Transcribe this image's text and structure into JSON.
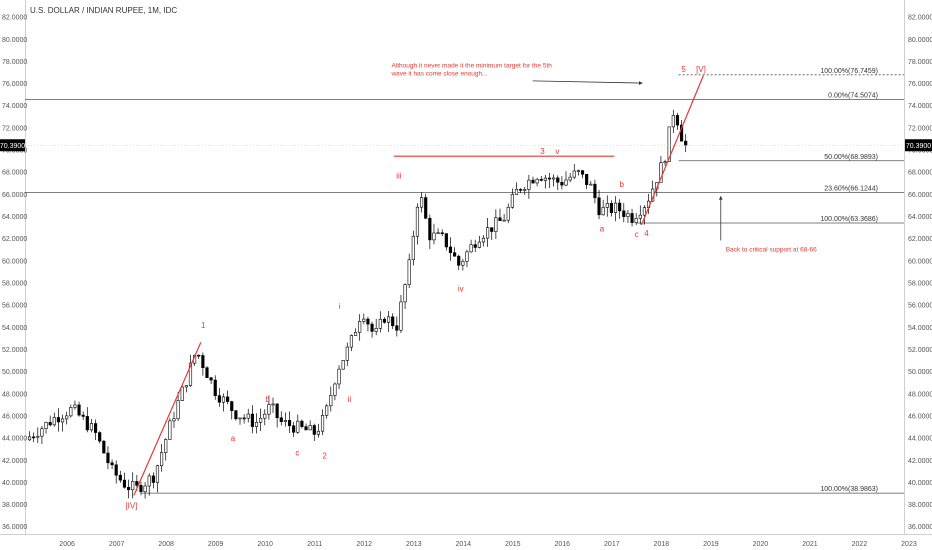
{
  "chart_data": {
    "type": "candlestick",
    "title": "U.S. DOLLAR / INDIAN RUPEE, 1M, IDC",
    "ylim": [
      35.3,
      83.5
    ],
    "xlim": [
      2005.65,
      2023.4
    ],
    "y_ticks": [
      "82.0000",
      "80.0000",
      "78.0000",
      "76.0000",
      "74.0000",
      "72.0000",
      "70.0000",
      "68.0000",
      "66.0000",
      "64.0000",
      "62.0000",
      "60.0000",
      "58.0000",
      "56.0000",
      "54.0000",
      "52.0000",
      "50.0000",
      "48.0000",
      "46.0000",
      "44.0000",
      "42.0000",
      "40.0000",
      "38.0000",
      "36.0000"
    ],
    "x_ticks": [
      "2006",
      "2007",
      "2008",
      "2009",
      "2010",
      "2011",
      "2012",
      "2013",
      "2014",
      "2015",
      "2016",
      "2017",
      "2018",
      "2019",
      "2020",
      "2021",
      "2022",
      "2023"
    ],
    "last_price": "70.3900",
    "grid": false,
    "colors": {
      "up": "#ffffff",
      "down": "#000000",
      "wick": "#000000",
      "annotation": "#e53935",
      "level": "#555555",
      "text": "#333333"
    },
    "anchors": [
      [
        2005.7,
        43.8
      ],
      [
        2006.3,
        45.8
      ],
      [
        2006.65,
        46.6
      ],
      [
        2007.1,
        44.5
      ],
      [
        2007.45,
        41.0
      ],
      [
        2007.75,
        39.6
      ],
      [
        2007.95,
        39.4
      ],
      [
        2008.3,
        40.6
      ],
      [
        2008.65,
        45.5
      ],
      [
        2008.95,
        49.2
      ],
      [
        2009.15,
        51.9
      ],
      [
        2009.55,
        48.1
      ],
      [
        2009.95,
        46.2
      ],
      [
        2010.35,
        45.3
      ],
      [
        2010.65,
        46.8
      ],
      [
        2010.85,
        45.4
      ],
      [
        2011.2,
        44.9
      ],
      [
        2011.55,
        44.4
      ],
      [
        2011.75,
        45.9
      ],
      [
        2012.0,
        50.2
      ],
      [
        2012.25,
        52.3
      ],
      [
        2012.5,
        55.6
      ],
      [
        2012.75,
        53.1
      ],
      [
        2012.95,
        54.9
      ],
      [
        2013.2,
        54.1
      ],
      [
        2013.45,
        59.5
      ],
      [
        2013.65,
        66.4
      ],
      [
        2013.85,
        62.3
      ],
      [
        2014.15,
        61.9
      ],
      [
        2014.45,
        59.6
      ],
      [
        2014.85,
        62.2
      ],
      [
        2015.35,
        63.7
      ],
      [
        2015.65,
        66.5
      ],
      [
        2016.05,
        67.8
      ],
      [
        2016.5,
        67.0
      ],
      [
        2016.85,
        67.9
      ],
      [
        2017.1,
        66.8
      ],
      [
        2017.3,
        64.5
      ],
      [
        2017.65,
        64.7
      ],
      [
        2017.95,
        63.9
      ],
      [
        2018.25,
        65.3
      ],
      [
        2018.6,
        69.1
      ],
      [
        2018.8,
        73.8
      ],
      [
        2019.0,
        70.4
      ]
    ],
    "levels": [
      {
        "label": "100.00%(76.7459)",
        "y": 76.7459,
        "x_from": 2018.85,
        "x_to": 2023.4,
        "style": "dashed"
      },
      {
        "label": "0.00%(74.5074)",
        "y": 74.5074,
        "x_from": 2005.65,
        "x_to": 2023.4,
        "style": "solid"
      },
      {
        "label": "50.00%(68.9893)",
        "y": 68.9893,
        "x_from": 2018.85,
        "x_to": 2023.4,
        "style": "solid"
      },
      {
        "label": "23.60%(66.1244)",
        "y": 66.1244,
        "x_from": 2005.65,
        "x_to": 2023.4,
        "style": "solid"
      },
      {
        "label": "100.00%(63.3686)",
        "y": 63.3686,
        "x_from": 2018.0,
        "x_to": 2023.4,
        "style": "solid"
      },
      {
        "label": "100.00%(38.9863)",
        "y": 38.9863,
        "x_from": 2008.0,
        "x_to": 2023.4,
        "style": "solid"
      }
    ],
    "lines": [
      {
        "x1": 2007.85,
        "y1": 38.8,
        "x2": 2009.2,
        "y2": 52.6
      },
      {
        "x1": 2018.1,
        "y1": 63.2,
        "x2": 2019.35,
        "y2": 76.7
      },
      {
        "x1": 2013.1,
        "y1": 69.4,
        "x2": 2017.55,
        "y2": 69.4
      }
    ],
    "annotations": [
      {
        "text": "[IV]",
        "x": 2007.8,
        "y": 37.6
      },
      {
        "text": "1",
        "x": 2009.25,
        "y": 53.9
      },
      {
        "text": "a",
        "x": 2009.85,
        "y": 43.7
      },
      {
        "text": "b",
        "x": 2010.55,
        "y": 47.2
      },
      {
        "text": "c",
        "x": 2011.15,
        "y": 42.4
      },
      {
        "text": "2",
        "x": 2011.7,
        "y": 42.1
      },
      {
        "text": "i",
        "x": 2012.0,
        "y": 55.6
      },
      {
        "text": "ii",
        "x": 2012.2,
        "y": 47.2
      },
      {
        "text": "iii",
        "x": 2013.2,
        "y": 67.4
      },
      {
        "text": "iv",
        "x": 2014.45,
        "y": 57.2
      },
      {
        "text": "3",
        "x": 2016.1,
        "y": 69.6
      },
      {
        "text": "v",
        "x": 2016.4,
        "y": 69.6
      },
      {
        "text": "a",
        "x": 2017.3,
        "y": 62.6
      },
      {
        "text": "b",
        "x": 2017.7,
        "y": 66.6
      },
      {
        "text": "c",
        "x": 2018.0,
        "y": 62.1
      },
      {
        "text": "4",
        "x": 2018.2,
        "y": 62.2
      },
      {
        "text": "5",
        "x": 2018.95,
        "y": 77.0
      },
      {
        "text": "[V]",
        "x": 2019.3,
        "y": 77.0
      }
    ],
    "notes": [
      {
        "lines": [
          "Although it never made it the minimum target for the 5th",
          "wave it has come close enough..."
        ],
        "x": 2013.05,
        "y": 77.4
      },
      {
        "lines": [
          "Back to critical support at 68-66"
        ],
        "x": 2019.8,
        "y": 60.8
      }
    ]
  }
}
